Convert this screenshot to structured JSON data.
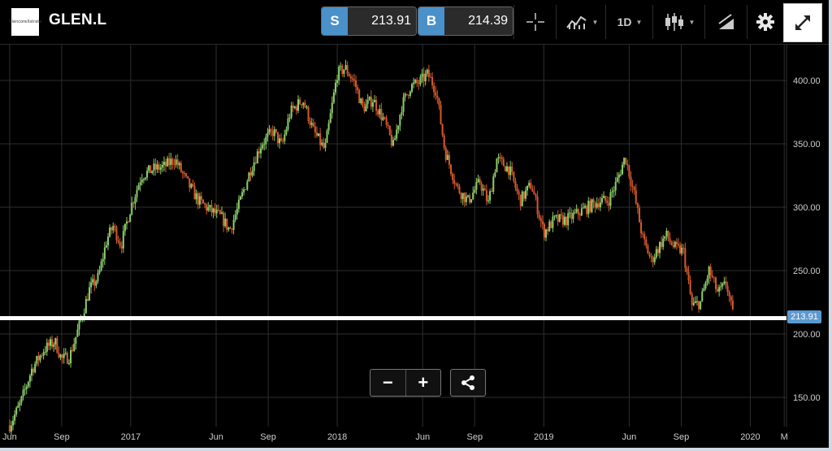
{
  "instrument": {
    "logo_text": "GlencoreXstrata",
    "symbol": "GLEN.L"
  },
  "quotes": {
    "sell_label": "S",
    "sell_price": "213.91",
    "buy_label": "B",
    "buy_price": "214.39"
  },
  "toolbar": {
    "crosshair_icon": "crosshair-icon",
    "indicators_icon": "indicators-icon",
    "timeframe": "1D",
    "chart_type_icon": "candlestick-icon",
    "drawing_icon": "drawing-tools-icon",
    "settings_icon": "gear-icon",
    "expand_icon": "expand-icon"
  },
  "controls": {
    "zoom_out": "−",
    "zoom_in": "+",
    "share_icon": "share-icon"
  },
  "colors": {
    "up": "#8ccf6a",
    "down": "#d65a2c",
    "price_tag": "#5b9ad0",
    "accent": "#4a90c9"
  },
  "chart_data": {
    "type": "candlestick",
    "title": "",
    "current_price_label": "213.91",
    "ylim": [
      125,
      420
    ],
    "yticks": [
      150,
      200,
      250,
      300,
      350,
      400
    ],
    "ytick_labels": [
      "150.00",
      "200.00",
      "250.00",
      "300.00",
      "350.00",
      "400.00"
    ],
    "x_range": [
      "2016-06",
      "2020-03"
    ],
    "xticks": [
      {
        "date": "2016-06-01",
        "label": "Jun"
      },
      {
        "date": "2016-09-01",
        "label": "Sep"
      },
      {
        "date": "2017-01-01",
        "label": "2017"
      },
      {
        "date": "2017-06-01",
        "label": "Jun"
      },
      {
        "date": "2017-09-01",
        "label": "Sep"
      },
      {
        "date": "2018-01-01",
        "label": "2018"
      },
      {
        "date": "2018-06-01",
        "label": "Jun"
      },
      {
        "date": "2018-09-01",
        "label": "Sep"
      },
      {
        "date": "2019-01-01",
        "label": "2019"
      },
      {
        "date": "2019-06-01",
        "label": "Jun"
      },
      {
        "date": "2019-09-01",
        "label": "Sep"
      },
      {
        "date": "2020-01-01",
        "label": "2020"
      },
      {
        "date": "2020-03-01",
        "label": "M"
      }
    ],
    "close_path": {
      "dates": [
        "2016-06-01",
        "2016-06-20",
        "2016-07-10",
        "2016-08-01",
        "2016-08-20",
        "2016-09-01",
        "2016-09-15",
        "2016-10-01",
        "2016-10-20",
        "2016-11-05",
        "2016-11-20",
        "2016-12-01",
        "2016-12-15",
        "2017-01-01",
        "2017-01-20",
        "2017-02-10",
        "2017-03-01",
        "2017-03-20",
        "2017-04-10",
        "2017-05-01",
        "2017-05-20",
        "2017-06-10",
        "2017-06-25",
        "2017-07-10",
        "2017-08-01",
        "2017-08-20",
        "2017-09-10",
        "2017-09-25",
        "2017-10-10",
        "2017-11-01",
        "2017-11-20",
        "2017-12-10",
        "2018-01-01",
        "2018-01-15",
        "2018-02-01",
        "2018-02-15",
        "2018-03-05",
        "2018-03-25",
        "2018-04-10",
        "2018-04-25",
        "2018-05-10",
        "2018-05-25",
        "2018-06-10",
        "2018-06-25",
        "2018-07-10",
        "2018-08-01",
        "2018-08-20",
        "2018-09-10",
        "2018-09-25",
        "2018-10-10",
        "2018-11-01",
        "2018-11-20",
        "2018-12-10",
        "2019-01-01",
        "2019-01-20",
        "2019-02-10",
        "2019-03-01",
        "2019-03-20",
        "2019-04-10",
        "2019-04-25",
        "2019-05-10",
        "2019-05-25",
        "2019-06-10",
        "2019-06-25",
        "2019-07-10",
        "2019-07-25",
        "2019-08-05",
        "2019-08-20",
        "2019-09-05",
        "2019-09-20",
        "2019-10-05",
        "2019-10-20",
        "2019-11-05",
        "2019-11-20",
        "2019-12-01"
      ],
      "values": [
        128,
        145,
        172,
        188,
        194,
        180,
        182,
        205,
        235,
        245,
        275,
        285,
        270,
        300,
        325,
        330,
        332,
        338,
        320,
        305,
        298,
        292,
        282,
        300,
        330,
        350,
        360,
        348,
        375,
        385,
        360,
        345,
        405,
        410,
        398,
        378,
        385,
        368,
        348,
        380,
        395,
        398,
        405,
        392,
        345,
        315,
        305,
        320,
        303,
        338,
        330,
        305,
        318,
        280,
        290,
        290,
        295,
        300,
        305,
        305,
        320,
        340,
        310,
        275,
        258,
        270,
        278,
        268,
        265,
        222,
        225,
        250,
        232,
        240,
        215
      ]
    }
  }
}
